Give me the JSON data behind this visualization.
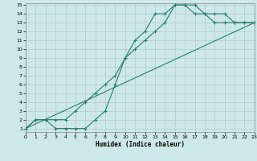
{
  "xlabel": "Humidex (Indice chaleur)",
  "xlim": [
    0,
    23
  ],
  "ylim": [
    1,
    15
  ],
  "xticks": [
    0,
    1,
    2,
    3,
    4,
    5,
    6,
    7,
    8,
    9,
    10,
    11,
    12,
    13,
    14,
    15,
    16,
    17,
    18,
    19,
    20,
    21,
    22,
    23
  ],
  "yticks": [
    1,
    2,
    3,
    4,
    5,
    6,
    7,
    8,
    9,
    10,
    11,
    12,
    13,
    14,
    15
  ],
  "bg_color": "#cce8e8",
  "line_color": "#2d7a6e",
  "grid_color": "#aecece",
  "line1_x": [
    0,
    1,
    2,
    3,
    4,
    5,
    6,
    7,
    8,
    9,
    10,
    11,
    12,
    13,
    14,
    15,
    16,
    17,
    18,
    19,
    20,
    21,
    22,
    23
  ],
  "line1_y": [
    1,
    2,
    2,
    1,
    1,
    1,
    1,
    2,
    3,
    6,
    9,
    11,
    12,
    14,
    14,
    15,
    15,
    15,
    14,
    14,
    14,
    13,
    13,
    13
  ],
  "line2_x": [
    0,
    1,
    2,
    3,
    4,
    5,
    6,
    7,
    8,
    9,
    10,
    11,
    12,
    13,
    14,
    15,
    16,
    17,
    18,
    19,
    20,
    21,
    22,
    23
  ],
  "line2_y": [
    1,
    2,
    2,
    2,
    2,
    3,
    4,
    5,
    6,
    7,
    9,
    10,
    11,
    12,
    13,
    15,
    15,
    14,
    14,
    13,
    13,
    13,
    13,
    13
  ],
  "line3_x": [
    0,
    23
  ],
  "line3_y": [
    1,
    13
  ]
}
